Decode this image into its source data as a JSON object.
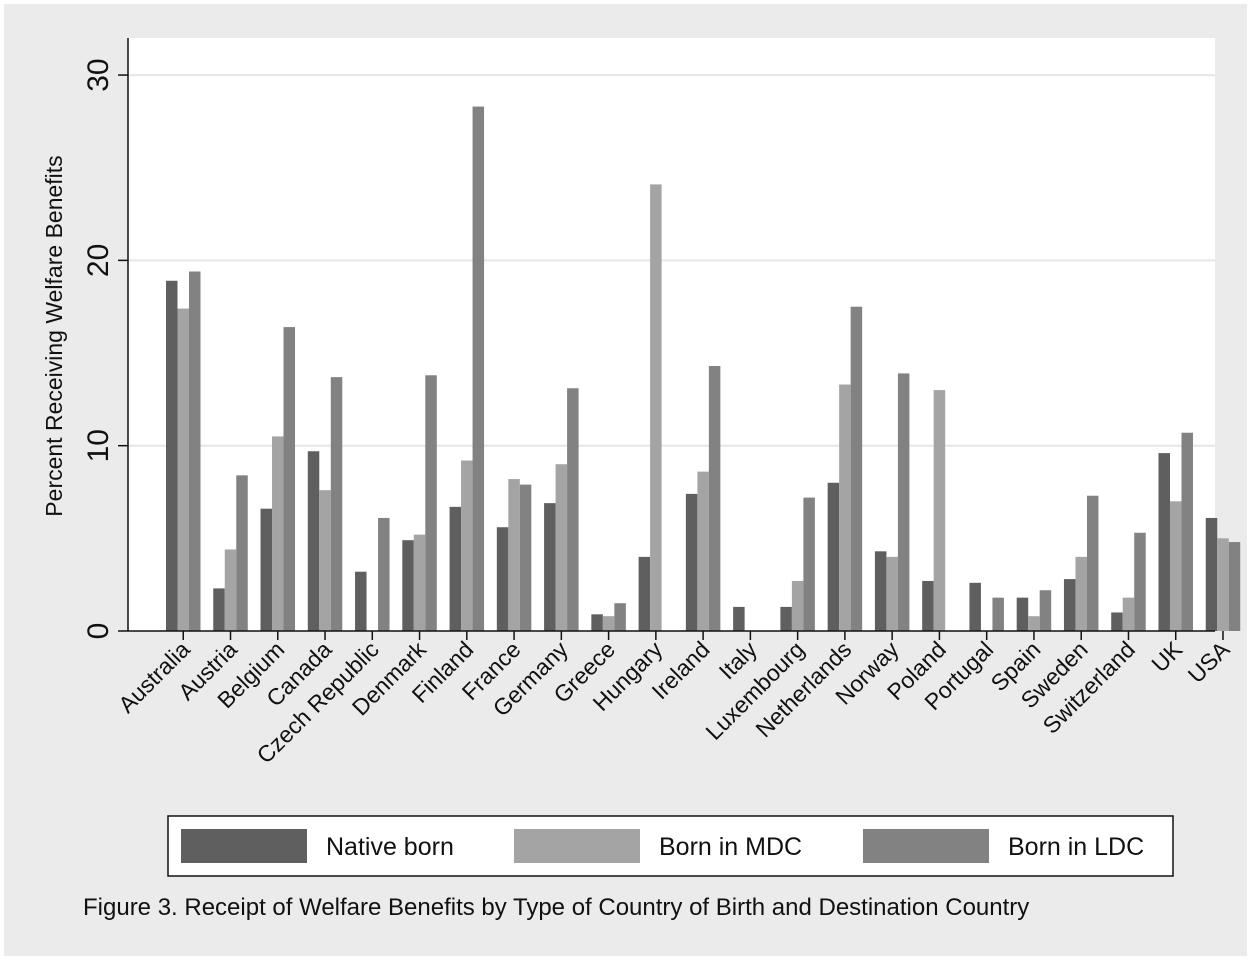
{
  "chart_data": {
    "type": "bar",
    "ylabel": "Percent Receiving Welfare Benefits",
    "xlabel": "",
    "ylim": [
      0,
      32
    ],
    "yticks": [
      0,
      10,
      20,
      30
    ],
    "grid": true,
    "legend_position": "bottom",
    "categories": [
      "Australia",
      "Austria",
      "Belgium",
      "Canada",
      "Czech Republic",
      "Denmark",
      "Finland",
      "France",
      "Germany",
      "Greece",
      "Hungary",
      "Ireland",
      "Italy",
      "Luxembourg",
      "Netherlands",
      "Norway",
      "Poland",
      "Portugal",
      "Spain",
      "Sweden",
      "Switzerland",
      "UK",
      "USA"
    ],
    "series": [
      {
        "name": "Native born",
        "color": "#5f5f5f",
        "values": [
          18.9,
          2.3,
          6.6,
          9.7,
          3.2,
          4.9,
          6.7,
          5.6,
          6.9,
          0.9,
          4.0,
          7.4,
          1.3,
          1.3,
          8.0,
          4.3,
          2.7,
          2.6,
          1.8,
          2.8,
          1.0,
          9.6,
          6.1
        ]
      },
      {
        "name": "Born in MDC",
        "color": "#a4a4a4",
        "values": [
          17.4,
          4.4,
          10.5,
          7.6,
          null,
          5.2,
          9.2,
          8.2,
          9.0,
          0.8,
          24.1,
          8.6,
          null,
          2.7,
          13.3,
          4.0,
          13.0,
          null,
          0.8,
          4.0,
          1.8,
          7.0,
          5.0
        ]
      },
      {
        "name": "Born in LDC",
        "color": "#828282",
        "values": [
          19.4,
          8.4,
          16.4,
          13.7,
          6.1,
          13.8,
          28.3,
          7.9,
          13.1,
          1.5,
          null,
          14.3,
          null,
          7.2,
          17.5,
          13.9,
          null,
          1.8,
          2.2,
          7.3,
          5.3,
          10.7,
          4.8
        ]
      }
    ]
  },
  "caption": "Figure 3. Receipt of Welfare Benefits by Type of Country of Birth and Destination Country"
}
